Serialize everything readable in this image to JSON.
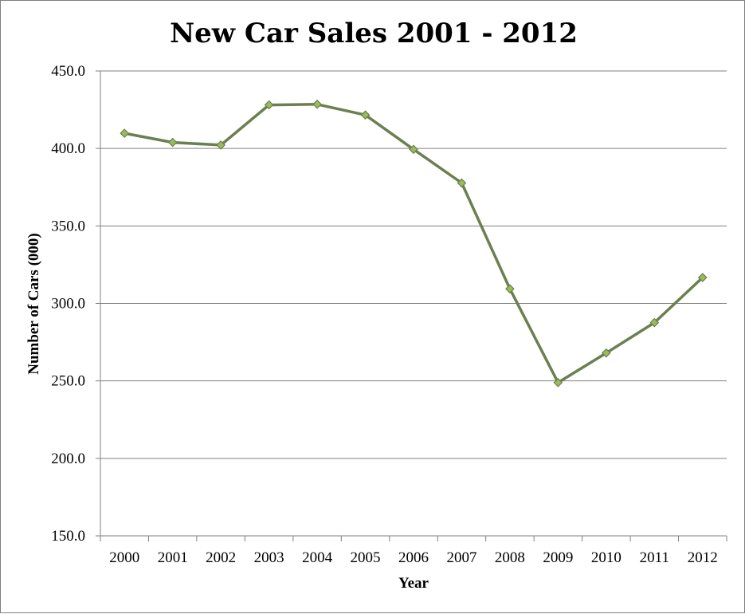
{
  "chart_data": {
    "type": "line",
    "title": "New Car Sales 2001 - 2012",
    "xlabel": "Year",
    "ylabel": "Number of Cars (000)",
    "categories": [
      "2000",
      "2001",
      "2002",
      "2003",
      "2004",
      "2005",
      "2006",
      "2007",
      "2008",
      "2009",
      "2010",
      "2011",
      "2012"
    ],
    "series": [
      {
        "values": [
          409.8,
          403.9,
          402.2,
          428.1,
          428.5,
          421.6,
          399.4,
          377.7,
          309.4,
          248.9,
          268.0,
          287.6,
          316.7
        ]
      }
    ],
    "ylim": [
      150.0,
      450.0
    ],
    "yticks": [
      "150.0",
      "200.0",
      "250.0",
      "300.0",
      "350.0",
      "400.0",
      "450.0"
    ],
    "grid": true,
    "legend": "none",
    "colors": {
      "line": "#6b7f50",
      "marker_fill": "#9bbb59",
      "marker_stroke": "#6b7f50",
      "gridline": "#808080",
      "axis": "#808080"
    }
  }
}
